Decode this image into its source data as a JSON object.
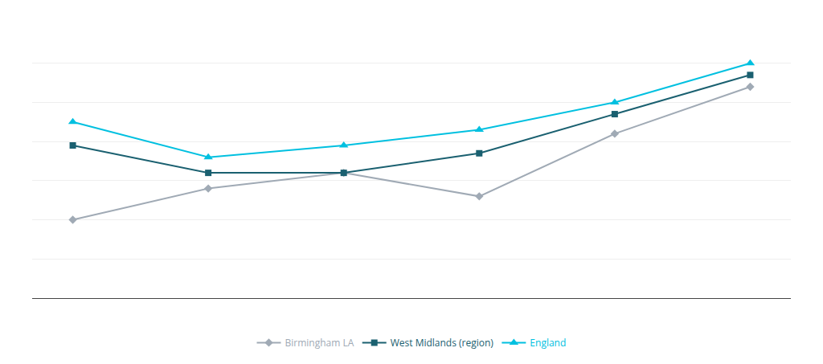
{
  "chart_data": {
    "type": "line",
    "categories": [
      null,
      null,
      null,
      null,
      null,
      null
    ],
    "series": [
      {
        "name": "Birmingham LA",
        "color": "#a0aab5",
        "marker": "diamond",
        "values": [
          40,
          48,
          52,
          46,
          62,
          74
        ]
      },
      {
        "name": "West Midlands (region)",
        "color": "#1a6070",
        "marker": "square",
        "values": [
          59,
          52,
          52,
          57,
          67,
          77
        ]
      },
      {
        "name": "England",
        "color": "#00c0e0",
        "marker": "triangle-up",
        "values": [
          65,
          56,
          59,
          63,
          70,
          80
        ]
      }
    ],
    "ylim": [
      20,
      90
    ],
    "yticks": [
      20,
      30,
      40,
      50,
      60,
      70,
      80,
      90
    ],
    "grid": true,
    "tick_labels": false,
    "legend": "bottom"
  }
}
